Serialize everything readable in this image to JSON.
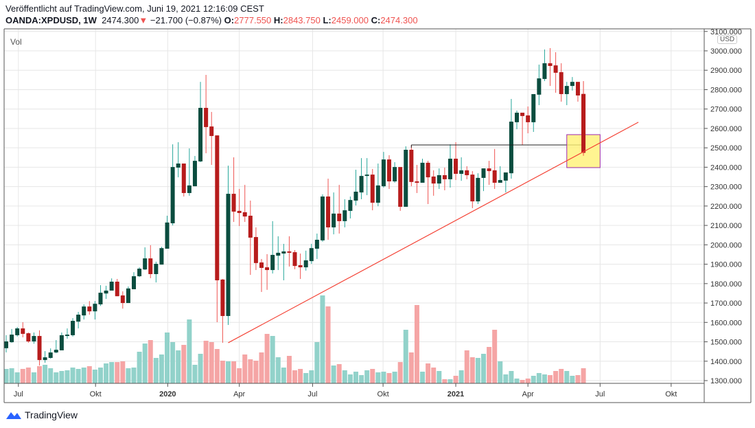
{
  "header": {
    "published": "Veröffentlicht auf TradingView.com, Juni 19, 2021 12:16:09 CEST",
    "symbol": "OANDA:XPDUSD, 1W",
    "last": "2474.300",
    "change": "−21.700 (−0.87%)",
    "o_label": "O:",
    "o": "2777.550",
    "h_label": "H:",
    "h": "2843.750",
    "l_label": "L:",
    "l": "2459.000",
    "c_label": "C:",
    "c": "2474.300"
  },
  "indicator_label": "Vol",
  "currency": "USD",
  "logo_text": "TradingView",
  "colors": {
    "up_body": "#0b4d3f",
    "down_body": "#b71c1c",
    "up_wick": "#26a69a",
    "down_wick": "#ef5350",
    "vol_up": "#92d2ca",
    "vol_down": "#f5a5a5",
    "trendline": "#f44336",
    "hline": "#1a237e",
    "box_fill": "#fff176",
    "box_border": "#9c27b0"
  },
  "chart_data": {
    "type": "candlestick",
    "interval": "1W",
    "ylim": [
      1300,
      3100
    ],
    "y_ticks": [
      1300,
      1400,
      1500,
      1600,
      1700,
      1800,
      1900,
      2000,
      2100,
      2200,
      2300,
      2400,
      2500,
      2600,
      2700,
      2800,
      2900,
      3000,
      3100
    ],
    "x_ticks": [
      {
        "label": "Jul",
        "at": 2.2
      },
      {
        "label": "Okt",
        "at": 16.1
      },
      {
        "label": "2020",
        "at": 29.1,
        "bold": true
      },
      {
        "label": "Apr",
        "at": 42.0
      },
      {
        "label": "Jul",
        "at": 55.2
      },
      {
        "label": "Okt",
        "at": 67.9
      },
      {
        "label": "2021",
        "at": 81.0,
        "bold": true
      },
      {
        "label": "Apr",
        "at": 94.0
      },
      {
        "label": "Jul",
        "at": 107.0
      },
      {
        "label": "Okt",
        "at": 119.8
      }
    ],
    "x_range": [
      -1,
      125.6
    ],
    "ohlc": [
      [
        1467,
        1534,
        1445,
        1502
      ],
      [
        1498,
        1566,
        1495,
        1537
      ],
      [
        1534,
        1576,
        1527,
        1569
      ],
      [
        1569,
        1601,
        1523,
        1541
      ],
      [
        1544,
        1548,
        1495,
        1502
      ],
      [
        1502,
        1548,
        1490,
        1530
      ],
      [
        1530,
        1559,
        1378,
        1406
      ],
      [
        1406,
        1452,
        1392,
        1420
      ],
      [
        1417,
        1466,
        1413,
        1445
      ],
      [
        1445,
        1509,
        1441,
        1459
      ],
      [
        1456,
        1548,
        1456,
        1534
      ],
      [
        1530,
        1569,
        1516,
        1537
      ],
      [
        1534,
        1622,
        1527,
        1608
      ],
      [
        1604,
        1654,
        1569,
        1640
      ],
      [
        1636,
        1693,
        1615,
        1682
      ],
      [
        1682,
        1710,
        1640,
        1657
      ],
      [
        1657,
        1710,
        1615,
        1696
      ],
      [
        1693,
        1792,
        1685,
        1753
      ],
      [
        1749,
        1789,
        1721,
        1764
      ],
      [
        1764,
        1827,
        1764,
        1810
      ],
      [
        1810,
        1824,
        1735,
        1735
      ],
      [
        1739,
        1760,
        1671,
        1700
      ],
      [
        1700,
        1785,
        1700,
        1775
      ],
      [
        1771,
        1859,
        1771,
        1838
      ],
      [
        1838,
        1884,
        1834,
        1877
      ],
      [
        1873,
        1987,
        1870,
        1930
      ],
      [
        1930,
        1998,
        1828,
        1849
      ],
      [
        1849,
        1913,
        1806,
        1902
      ],
      [
        1898,
        1990,
        1898,
        1983
      ],
      [
        1980,
        2150,
        1980,
        2115
      ],
      [
        2111,
        2518,
        2100,
        2401
      ],
      [
        2398,
        2529,
        2348,
        2419
      ],
      [
        2419,
        2419,
        2249,
        2267
      ],
      [
        2267,
        2497,
        2253,
        2306
      ],
      [
        2302,
        2458,
        2302,
        2433
      ],
      [
        2430,
        2840,
        2426,
        2706
      ],
      [
        2706,
        2876,
        2472,
        2607
      ],
      [
        2610,
        2685,
        2412,
        2561
      ],
      [
        2564,
        2564,
        1601,
        1817
      ],
      [
        1821,
        1824,
        1495,
        1633
      ],
      [
        1633,
        2408,
        1587,
        2263
      ],
      [
        2263,
        2451,
        2118,
        2171
      ],
      [
        2175,
        2288,
        2097,
        2164
      ],
      [
        2168,
        2309,
        2118,
        2146
      ],
      [
        2150,
        2228,
        1845,
        2037
      ],
      [
        2040,
        2090,
        1870,
        1906
      ],
      [
        1909,
        1927,
        1757,
        1881
      ],
      [
        1884,
        1952,
        1768,
        1870
      ],
      [
        1870,
        2122,
        1852,
        1948
      ],
      [
        1944,
        2044,
        1870,
        1959
      ],
      [
        1955,
        2005,
        1817,
        1966
      ],
      [
        1966,
        2044,
        1888,
        1959
      ],
      [
        1962,
        1973,
        1874,
        1891
      ],
      [
        1895,
        1955,
        1824,
        1884
      ],
      [
        1884,
        1970,
        1867,
        1920
      ],
      [
        1916,
        2005,
        1902,
        1983
      ],
      [
        1980,
        2058,
        1927,
        2026
      ],
      [
        2023,
        2260,
        2016,
        2249
      ],
      [
        2249,
        2341,
        2026,
        2090
      ],
      [
        2090,
        2270,
        2054,
        2161
      ],
      [
        2161,
        2309,
        2058,
        2122
      ],
      [
        2122,
        2235,
        2090,
        2178
      ],
      [
        2175,
        2249,
        2136,
        2231
      ],
      [
        2228,
        2387,
        2203,
        2274
      ],
      [
        2270,
        2447,
        2235,
        2355
      ],
      [
        2355,
        2447,
        2256,
        2362
      ],
      [
        2362,
        2391,
        2178,
        2217
      ],
      [
        2217,
        2419,
        2199,
        2306
      ],
      [
        2302,
        2479,
        2295,
        2440
      ],
      [
        2440,
        2462,
        2288,
        2327
      ],
      [
        2327,
        2426,
        2320,
        2401
      ],
      [
        2401,
        2401,
        2175,
        2196
      ],
      [
        2196,
        2508,
        2196,
        2490
      ],
      [
        2490,
        2515,
        2302,
        2324
      ],
      [
        2327,
        2412,
        2267,
        2320
      ],
      [
        2320,
        2444,
        2320,
        2423
      ],
      [
        2423,
        2433,
        2210,
        2348
      ],
      [
        2352,
        2384,
        2253,
        2316
      ],
      [
        2316,
        2394,
        2288,
        2359
      ],
      [
        2359,
        2398,
        2281,
        2338
      ],
      [
        2338,
        2518,
        2295,
        2444
      ],
      [
        2444,
        2529,
        2334,
        2366
      ],
      [
        2366,
        2451,
        2330,
        2384
      ],
      [
        2384,
        2405,
        2338,
        2359
      ],
      [
        2362,
        2380,
        2189,
        2224
      ],
      [
        2224,
        2369,
        2210,
        2345
      ],
      [
        2345,
        2394,
        2277,
        2394
      ],
      [
        2394,
        2433,
        2309,
        2380
      ],
      [
        2384,
        2494,
        2288,
        2320
      ],
      [
        2320,
        2405,
        2320,
        2334
      ],
      [
        2331,
        2373,
        2270,
        2373
      ],
      [
        2369,
        2752,
        2341,
        2635
      ],
      [
        2632,
        2692,
        2596,
        2681
      ],
      [
        2681,
        2681,
        2515,
        2664
      ],
      [
        2667,
        2713,
        2575,
        2632
      ],
      [
        2632,
        2777,
        2582,
        2777
      ],
      [
        2774,
        2929,
        2720,
        2858
      ],
      [
        2855,
        3007,
        2844,
        2936
      ],
      [
        2936,
        3014,
        2819,
        2922
      ],
      [
        2925,
        2993,
        2784,
        2887
      ],
      [
        2890,
        2936,
        2738,
        2777
      ],
      [
        2777,
        2840,
        2720,
        2819
      ],
      [
        2819,
        2865,
        2795,
        2840
      ],
      [
        2840,
        2840,
        2738,
        2770
      ],
      [
        2777.55,
        2843.75,
        2459,
        2474.3
      ]
    ],
    "volume": [
      21,
      22,
      16,
      21,
      23,
      16,
      25,
      27,
      22,
      16,
      18,
      19,
      23,
      21,
      23,
      25,
      20,
      23,
      29,
      31,
      31,
      32,
      22,
      23,
      46,
      58,
      63,
      37,
      42,
      74,
      60,
      48,
      56,
      93,
      27,
      43,
      62,
      60,
      50,
      33,
      32,
      32,
      22,
      42,
      35,
      33,
      45,
      72,
      69,
      38,
      23,
      40,
      19,
      21,
      15,
      19,
      60,
      128,
      112,
      26,
      28,
      19,
      13,
      17,
      12,
      19,
      21,
      16,
      17,
      15,
      17,
      31,
      78,
      45,
      114,
      17,
      29,
      23,
      18,
      6,
      6,
      11,
      19,
      48,
      38,
      37,
      43,
      53,
      78,
      32,
      13,
      18,
      7,
      5,
      7,
      11,
      15,
      13,
      12,
      18,
      21,
      18,
      11,
      12,
      22
    ],
    "drawings": {
      "trendline": {
        "from": [
          40,
          1495
        ],
        "to": [
          113.9,
          2632
        ]
      },
      "horizontal_line": {
        "from": 73,
        "to": 104,
        "price": 2515
      },
      "highlight_box": {
        "from": 101,
        "to": 107,
        "price_low": 2398,
        "price_high": 2568
      }
    }
  }
}
